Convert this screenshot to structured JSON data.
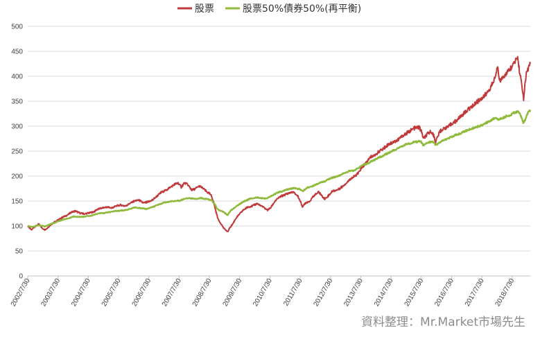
{
  "chart_data": {
    "type": "line",
    "ylim": [
      0,
      500
    ],
    "y_ticks": [
      0,
      50,
      100,
      150,
      200,
      250,
      300,
      350,
      400,
      450,
      500
    ],
    "x_tick_labels": [
      "2002/7/30",
      "2003/7/30",
      "2004/7/30",
      "2005/7/30",
      "2006/7/30",
      "2007/7/30",
      "2008/7/30",
      "2009/7/30",
      "2010/7/30",
      "2011/7/30",
      "2012/7/30",
      "2013/7/30",
      "2014/7/30",
      "2015/7/30",
      "2016/7/30",
      "2017/7/30",
      "2018/7/30"
    ],
    "x_range": [
      2002.58,
      2019.18
    ],
    "grid": "horizontal",
    "legend_position": "top",
    "source_note": "資料整理：Mr.Market市場先生",
    "series": [
      {
        "name": "股票",
        "color": "#c0393b",
        "points": [
          [
            2002.58,
            100
          ],
          [
            2002.7,
            92
          ],
          [
            2002.8,
            98
          ],
          [
            2002.95,
            104
          ],
          [
            2003.05,
            96
          ],
          [
            2003.15,
            92
          ],
          [
            2003.3,
            100
          ],
          [
            2003.45,
            108
          ],
          [
            2003.58,
            112
          ],
          [
            2003.75,
            118
          ],
          [
            2003.9,
            122
          ],
          [
            2004.0,
            127
          ],
          [
            2004.15,
            130
          ],
          [
            2004.3,
            126
          ],
          [
            2004.45,
            124
          ],
          [
            2004.58,
            126
          ],
          [
            2004.75,
            128
          ],
          [
            2004.9,
            134
          ],
          [
            2005.05,
            136
          ],
          [
            2005.2,
            138
          ],
          [
            2005.35,
            136
          ],
          [
            2005.5,
            140
          ],
          [
            2005.65,
            142
          ],
          [
            2005.8,
            140
          ],
          [
            2005.95,
            145
          ],
          [
            2006.1,
            150
          ],
          [
            2006.25,
            152
          ],
          [
            2006.4,
            146
          ],
          [
            2006.55,
            148
          ],
          [
            2006.7,
            152
          ],
          [
            2006.85,
            160
          ],
          [
            2007.0,
            168
          ],
          [
            2007.15,
            172
          ],
          [
            2007.3,
            178
          ],
          [
            2007.45,
            184
          ],
          [
            2007.55,
            186
          ],
          [
            2007.65,
            178
          ],
          [
            2007.75,
            186
          ],
          [
            2007.85,
            184
          ],
          [
            2008.0,
            172
          ],
          [
            2008.1,
            174
          ],
          [
            2008.25,
            180
          ],
          [
            2008.4,
            174
          ],
          [
            2008.5,
            168
          ],
          [
            2008.58,
            165
          ],
          [
            2008.65,
            160
          ],
          [
            2008.72,
            148
          ],
          [
            2008.8,
            128
          ],
          [
            2008.88,
            112
          ],
          [
            2008.96,
            105
          ],
          [
            2009.05,
            96
          ],
          [
            2009.12,
            92
          ],
          [
            2009.18,
            88
          ],
          [
            2009.25,
            96
          ],
          [
            2009.35,
            104
          ],
          [
            2009.45,
            115
          ],
          [
            2009.58,
            124
          ],
          [
            2009.7,
            132
          ],
          [
            2009.85,
            138
          ],
          [
            2010.0,
            140
          ],
          [
            2010.15,
            145
          ],
          [
            2010.3,
            140
          ],
          [
            2010.4,
            136
          ],
          [
            2010.5,
            132
          ],
          [
            2010.6,
            136
          ],
          [
            2010.75,
            150
          ],
          [
            2010.9,
            158
          ],
          [
            2011.05,
            162
          ],
          [
            2011.2,
            166
          ],
          [
            2011.35,
            168
          ],
          [
            2011.5,
            160
          ],
          [
            2011.58,
            150
          ],
          [
            2011.66,
            138
          ],
          [
            2011.75,
            146
          ],
          [
            2011.9,
            150
          ],
          [
            2012.05,
            162
          ],
          [
            2012.2,
            168
          ],
          [
            2012.3,
            160
          ],
          [
            2012.4,
            154
          ],
          [
            2012.5,
            160
          ],
          [
            2012.65,
            170
          ],
          [
            2012.8,
            172
          ],
          [
            2012.95,
            178
          ],
          [
            2013.1,
            186
          ],
          [
            2013.25,
            195
          ],
          [
            2013.4,
            200
          ],
          [
            2013.5,
            206
          ],
          [
            2013.58,
            214
          ],
          [
            2013.75,
            226
          ],
          [
            2013.9,
            238
          ],
          [
            2014.05,
            242
          ],
          [
            2014.2,
            250
          ],
          [
            2014.35,
            256
          ],
          [
            2014.5,
            264
          ],
          [
            2014.65,
            268
          ],
          [
            2014.8,
            272
          ],
          [
            2014.95,
            280
          ],
          [
            2015.1,
            286
          ],
          [
            2015.25,
            292
          ],
          [
            2015.35,
            296
          ],
          [
            2015.5,
            298
          ],
          [
            2015.58,
            290
          ],
          [
            2015.65,
            275
          ],
          [
            2015.75,
            282
          ],
          [
            2015.9,
            290
          ],
          [
            2016.0,
            280
          ],
          [
            2016.05,
            268
          ],
          [
            2016.1,
            276
          ],
          [
            2016.2,
            290
          ],
          [
            2016.35,
            296
          ],
          [
            2016.5,
            300
          ],
          [
            2016.58,
            305
          ],
          [
            2016.72,
            310
          ],
          [
            2016.85,
            318
          ],
          [
            2017.0,
            326
          ],
          [
            2017.15,
            335
          ],
          [
            2017.3,
            342
          ],
          [
            2017.45,
            350
          ],
          [
            2017.58,
            356
          ],
          [
            2017.72,
            364
          ],
          [
            2017.85,
            375
          ],
          [
            2017.96,
            388
          ],
          [
            2018.05,
            405
          ],
          [
            2018.1,
            420
          ],
          [
            2018.15,
            398
          ],
          [
            2018.2,
            392
          ],
          [
            2018.3,
            400
          ],
          [
            2018.45,
            410
          ],
          [
            2018.58,
            420
          ],
          [
            2018.7,
            432
          ],
          [
            2018.76,
            438
          ],
          [
            2018.82,
            412
          ],
          [
            2018.88,
            390
          ],
          [
            2018.92,
            372
          ],
          [
            2018.96,
            355
          ],
          [
            2019.0,
            380
          ],
          [
            2019.05,
            405
          ],
          [
            2019.12,
            418
          ],
          [
            2019.18,
            425
          ]
        ]
      },
      {
        "name": "股票50%債券50%(再平衡)",
        "color": "#8fba3c",
        "points": [
          [
            2002.58,
            100
          ],
          [
            2002.75,
            98
          ],
          [
            2002.95,
            102
          ],
          [
            2003.15,
            99
          ],
          [
            2003.3,
            103
          ],
          [
            2003.5,
            107
          ],
          [
            2003.7,
            112
          ],
          [
            2003.9,
            115
          ],
          [
            2004.1,
            119
          ],
          [
            2004.3,
            118
          ],
          [
            2004.5,
            119
          ],
          [
            2004.7,
            121
          ],
          [
            2004.9,
            125
          ],
          [
            2005.1,
            126
          ],
          [
            2005.3,
            128
          ],
          [
            2005.5,
            130
          ],
          [
            2005.7,
            131
          ],
          [
            2005.9,
            133
          ],
          [
            2006.1,
            137
          ],
          [
            2006.3,
            136
          ],
          [
            2006.5,
            134
          ],
          [
            2006.7,
            138
          ],
          [
            2006.9,
            143
          ],
          [
            2007.1,
            147
          ],
          [
            2007.3,
            149
          ],
          [
            2007.5,
            151
          ],
          [
            2007.6,
            150
          ],
          [
            2007.7,
            154
          ],
          [
            2007.9,
            156
          ],
          [
            2008.1,
            154
          ],
          [
            2008.3,
            156
          ],
          [
            2008.5,
            154
          ],
          [
            2008.65,
            152
          ],
          [
            2008.75,
            144
          ],
          [
            2008.85,
            134
          ],
          [
            2008.95,
            130
          ],
          [
            2009.05,
            128
          ],
          [
            2009.18,
            122
          ],
          [
            2009.3,
            132
          ],
          [
            2009.45,
            138
          ],
          [
            2009.6,
            145
          ],
          [
            2009.75,
            150
          ],
          [
            2009.9,
            154
          ],
          [
            2010.1,
            157
          ],
          [
            2010.3,
            156
          ],
          [
            2010.45,
            155
          ],
          [
            2010.6,
            159
          ],
          [
            2010.8,
            166
          ],
          [
            2011.0,
            170
          ],
          [
            2011.2,
            174
          ],
          [
            2011.4,
            176
          ],
          [
            2011.55,
            174
          ],
          [
            2011.66,
            170
          ],
          [
            2011.8,
            176
          ],
          [
            2012.0,
            180
          ],
          [
            2012.2,
            186
          ],
          [
            2012.4,
            190
          ],
          [
            2012.6,
            196
          ],
          [
            2012.8,
            199
          ],
          [
            2013.0,
            205
          ],
          [
            2013.2,
            210
          ],
          [
            2013.4,
            212
          ],
          [
            2013.58,
            220
          ],
          [
            2013.75,
            224
          ],
          [
            2013.95,
            230
          ],
          [
            2014.15,
            236
          ],
          [
            2014.35,
            242
          ],
          [
            2014.55,
            248
          ],
          [
            2014.75,
            254
          ],
          [
            2014.95,
            260
          ],
          [
            2015.15,
            265
          ],
          [
            2015.35,
            268
          ],
          [
            2015.55,
            270
          ],
          [
            2015.65,
            262
          ],
          [
            2015.78,
            266
          ],
          [
            2015.95,
            270
          ],
          [
            2016.05,
            262
          ],
          [
            2016.15,
            266
          ],
          [
            2016.3,
            272
          ],
          [
            2016.5,
            276
          ],
          [
            2016.7,
            282
          ],
          [
            2016.9,
            286
          ],
          [
            2017.1,
            292
          ],
          [
            2017.3,
            296
          ],
          [
            2017.5,
            300
          ],
          [
            2017.7,
            306
          ],
          [
            2017.9,
            312
          ],
          [
            2018.05,
            318
          ],
          [
            2018.15,
            312
          ],
          [
            2018.3,
            318
          ],
          [
            2018.5,
            322
          ],
          [
            2018.7,
            328
          ],
          [
            2018.8,
            330
          ],
          [
            2018.88,
            318
          ],
          [
            2018.96,
            306
          ],
          [
            2019.02,
            315
          ],
          [
            2019.1,
            326
          ],
          [
            2019.18,
            332
          ]
        ]
      }
    ]
  }
}
